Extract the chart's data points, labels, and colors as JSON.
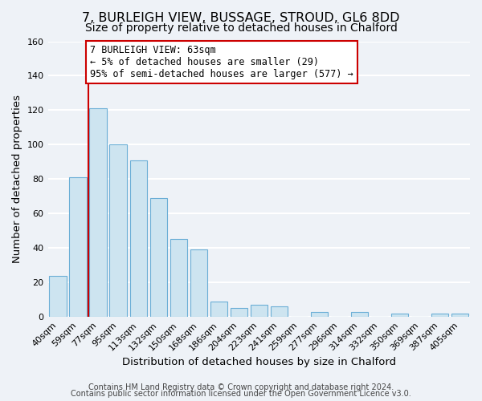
{
  "title": "7, BURLEIGH VIEW, BUSSAGE, STROUD, GL6 8DD",
  "subtitle": "Size of property relative to detached houses in Chalford",
  "xlabel": "Distribution of detached houses by size in Chalford",
  "ylabel": "Number of detached properties",
  "bar_labels": [
    "40sqm",
    "59sqm",
    "77sqm",
    "95sqm",
    "113sqm",
    "132sqm",
    "150sqm",
    "168sqm",
    "186sqm",
    "204sqm",
    "223sqm",
    "241sqm",
    "259sqm",
    "277sqm",
    "296sqm",
    "314sqm",
    "332sqm",
    "350sqm",
    "369sqm",
    "387sqm",
    "405sqm"
  ],
  "bar_values": [
    24,
    81,
    121,
    100,
    91,
    69,
    45,
    39,
    9,
    5,
    7,
    6,
    0,
    3,
    0,
    3,
    0,
    2,
    0,
    2,
    2
  ],
  "bar_color": "#cde4f0",
  "bar_edge_color": "#6baed6",
  "ylim": [
    0,
    160
  ],
  "yticks": [
    0,
    20,
    40,
    60,
    80,
    100,
    120,
    140,
    160
  ],
  "annotation_line1": "7 BURLEIGH VIEW: 63sqm",
  "annotation_line2": "← 5% of detached houses are smaller (29)",
  "annotation_line3": "95% of semi-detached houses are larger (577) →",
  "property_line_color": "#cc0000",
  "footer_line1": "Contains HM Land Registry data © Crown copyright and database right 2024.",
  "footer_line2": "Contains public sector information licensed under the Open Government Licence v3.0.",
  "bg_color": "#eef2f7",
  "grid_color": "#ffffff",
  "title_fontsize": 11.5,
  "subtitle_fontsize": 10,
  "axis_label_fontsize": 9.5,
  "tick_fontsize": 8,
  "footer_fontsize": 7,
  "annotation_fontsize": 8.5
}
